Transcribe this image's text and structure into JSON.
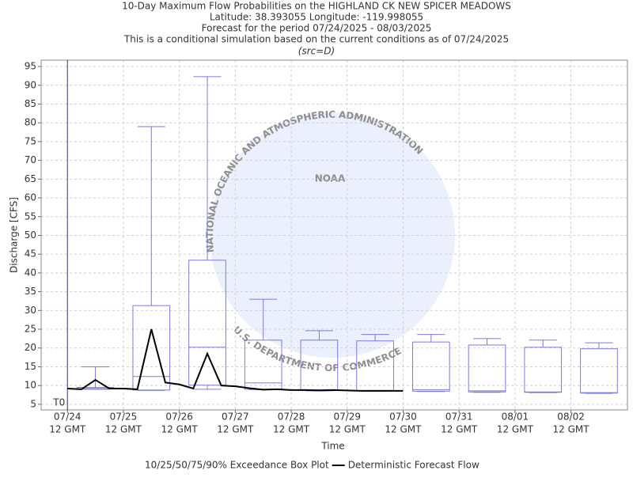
{
  "chart_data": {
    "type": "box",
    "title": "10-Day Maximum Flow Probabilities on the HIGHLAND CK NEW SPICER MEADOWS",
    "subtitle_lines": [
      "Latitude: 38.393055 Longitude: -119.998055",
      "Forecast for the period 07/24/2025 - 08/03/2025",
      "This is a conditional simulation based on the current conditions as of 07/24/2025",
      "(src=D)"
    ],
    "x_label": "Time",
    "y_label": "Discharge [CFS]",
    "marker_label": "T0",
    "marker_x": 0.5,
    "marker_color": "#333399",
    "grid": true,
    "watermark": {
      "logo": "NOAA",
      "ring_top": "NATIONAL OCEANIC AND ATMOSPHERIC ADMINISTRATION",
      "ring_bottom": "U.S. DEPARTMENT OF COMMERCE"
    },
    "xlim": [
      0.03,
      10.51
    ],
    "ylim": [
      3.5,
      96.7
    ],
    "xticks": [
      {
        "value": 0.5,
        "label": "07/24"
      },
      {
        "value": 1.5,
        "label": "07/25"
      },
      {
        "value": 2.5,
        "label": "07/26"
      },
      {
        "value": 3.5,
        "label": "07/27"
      },
      {
        "value": 4.5,
        "label": "07/28"
      },
      {
        "value": 5.5,
        "label": "07/29"
      },
      {
        "value": 6.5,
        "label": "07/30"
      },
      {
        "value": 7.5,
        "label": "07/31"
      },
      {
        "value": 8.5,
        "label": "08/01"
      },
      {
        "value": 9.5,
        "label": "08/02"
      }
    ],
    "xtick_times": [
      "12 GMT",
      "12 GMT",
      "12 GMT",
      "12 GMT",
      "12 GMT",
      "12 GMT",
      "12 GMT",
      "12 GMT",
      "12 GMT",
      "12 GMT"
    ],
    "yticks": [
      5,
      10,
      15,
      20,
      25,
      30,
      35,
      40,
      45,
      50,
      55,
      60,
      65,
      70,
      75,
      80,
      85,
      90,
      95
    ],
    "series": [
      {
        "name": "10/25/50/75/90% Exceedance Box Plot",
        "type": "box",
        "color": "#7b7bdb",
        "x": [
          1,
          2,
          3,
          4,
          5,
          6,
          7,
          8,
          9,
          10
        ],
        "p10": [
          9.0,
          8.7,
          9.0,
          8.9,
          8.6,
          8.5,
          8.4,
          8.2,
          8.1,
          7.9
        ],
        "p25": [
          9.1,
          8.8,
          10.1,
          9.0,
          8.7,
          8.6,
          8.5,
          8.3,
          8.2,
          8.0
        ],
        "p50": [
          9.2,
          12.4,
          20.2,
          10.7,
          8.9,
          8.7,
          8.9,
          8.6,
          8.3,
          8.1
        ],
        "p75": [
          9.5,
          31.3,
          43.4,
          22.1,
          22.1,
          21.9,
          21.6,
          20.8,
          20.2,
          19.8
        ],
        "p90": [
          15,
          79,
          92.3,
          33,
          24.6,
          23.6,
          23.6,
          22.5,
          22.1,
          21.4
        ]
      },
      {
        "name": "Deterministic Forecast Flow",
        "type": "line",
        "color": "#000000",
        "x": [
          0.5,
          0.75,
          1.0,
          1.25,
          1.5,
          1.75,
          2.0,
          2.25,
          2.5,
          2.75,
          3.0,
          3.25,
          3.5,
          3.75,
          4.0,
          4.25,
          4.5,
          4.75,
          5.0,
          5.25,
          5.5,
          5.75,
          6.0,
          6.25,
          6.5
        ],
        "values": [
          9.2,
          9.0,
          11.5,
          9.2,
          9.2,
          9.0,
          25.0,
          10.8,
          10.3,
          9.2,
          18.5,
          10.0,
          9.8,
          9.3,
          8.9,
          9.0,
          8.8,
          8.8,
          8.7,
          8.8,
          8.7,
          8.6,
          8.6,
          8.6,
          8.6
        ]
      }
    ]
  }
}
